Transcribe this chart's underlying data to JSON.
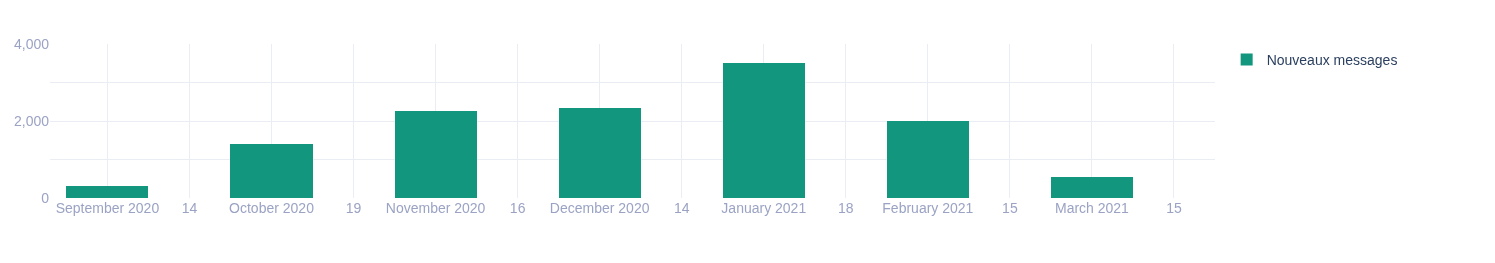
{
  "chart_data": {
    "type": "bar",
    "categories": [
      "September 2020",
      "14",
      "October 2020",
      "19",
      "November 2020",
      "16",
      "December 2020",
      "14",
      "January 2021",
      "18",
      "February 2021",
      "15",
      "March 2021",
      "15"
    ],
    "series": [
      {
        "name": "Nouveaux messages",
        "color": "#12977e",
        "values": [
          300,
          null,
          1400,
          null,
          2250,
          null,
          2350,
          null,
          3500,
          null,
          2000,
          null,
          550,
          null
        ]
      }
    ],
    "ylim": [
      0,
      4000
    ],
    "yticks": [
      0,
      {
        "value": 1000,
        "label": null
      },
      {
        "value": 2000,
        "label": "2,000"
      },
      {
        "value": 3000,
        "label": null
      },
      {
        "value": 4000,
        "label": "4,000"
      }
    ],
    "grid": true,
    "legend": "top right"
  }
}
